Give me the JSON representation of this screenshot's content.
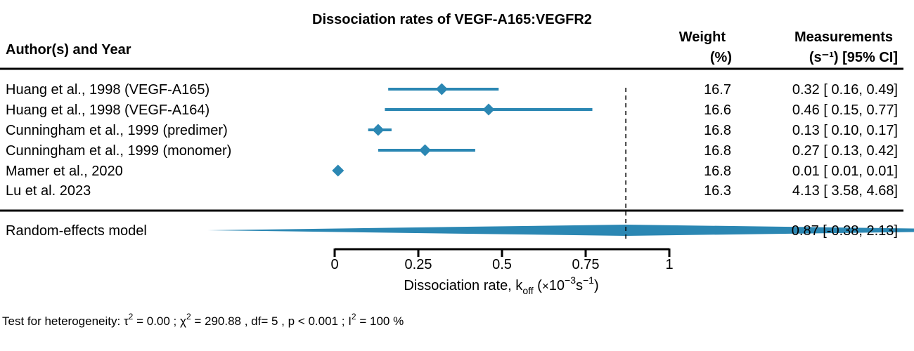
{
  "chart_data": {
    "type": "forest",
    "title": "Dissociation rates of VEGF-A165:VEGFR2",
    "headers": {
      "study": "Author(s) and Year",
      "weight_line1": "Weight",
      "weight_line2": "(%)",
      "measure_line1": "Measurements",
      "measure_line2": "(s⁻¹) [95% CI]"
    },
    "studies": [
      {
        "label": "Huang et al., 1998 (VEGF-A165)",
        "est": 0.32,
        "lo": 0.16,
        "hi": 0.49,
        "weight": "16.7",
        "ci_text": "0.32 [ 0.16, 0.49]"
      },
      {
        "label": "Huang et al., 1998 (VEGF-A164)",
        "est": 0.46,
        "lo": 0.15,
        "hi": 0.77,
        "weight": "16.6",
        "ci_text": "0.46 [ 0.15, 0.77]"
      },
      {
        "label": "Cunningham et al., 1999 (predimer)",
        "est": 0.13,
        "lo": 0.1,
        "hi": 0.17,
        "weight": "16.8",
        "ci_text": "0.13 [ 0.10, 0.17]"
      },
      {
        "label": "Cunningham et al., 1999 (monomer)",
        "est": 0.27,
        "lo": 0.13,
        "hi": 0.42,
        "weight": "16.8",
        "ci_text": "0.27 [ 0.13, 0.42]"
      },
      {
        "label": "Mamer et al., 2020",
        "est": 0.01,
        "lo": 0.01,
        "hi": 0.01,
        "weight": "16.8",
        "ci_text": "0.01 [ 0.01, 0.01]"
      },
      {
        "label": "Lu et al. 2023",
        "est": 4.13,
        "lo": 3.58,
        "hi": 4.68,
        "weight": "16.3",
        "ci_text": "4.13 [ 3.58, 4.68]"
      }
    ],
    "summary": {
      "label": "Random-effects model",
      "est": 0.87,
      "lo": -0.38,
      "hi": 2.13,
      "ci_text": "0.87 [-0.38, 2.13]"
    },
    "xlim": [
      0,
      1
    ],
    "xticks": [
      0,
      0.25,
      0.5,
      0.75,
      1
    ],
    "xtick_labels": [
      "0",
      "0.25",
      "0.5",
      "0.75",
      "1"
    ],
    "xlabel": {
      "main": "Dissociation rate, k",
      "sub": "off",
      "unit_open": " (",
      "times": "×",
      "ten": "10",
      "exp": "−3",
      "s": "s",
      "s_exp": "−1",
      "close": ")"
    },
    "reference_line": 0.87,
    "heterogeneity": {
      "prefix": "Test for heterogeneity:",
      "tau": "τ",
      "tau_val": " = 0.00 ;",
      "chi": "χ",
      "chi_val": " = 290.88 , df= 5 ,  p < 0.001 ;",
      "i": "I",
      "i_val": " = 100 %",
      "sq": "2"
    },
    "marker_color": "#2b87b3"
  }
}
